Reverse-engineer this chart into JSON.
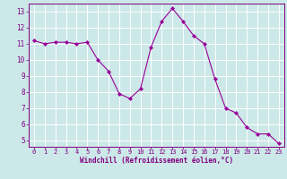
{
  "x": [
    0,
    1,
    2,
    3,
    4,
    5,
    6,
    7,
    8,
    9,
    10,
    11,
    12,
    13,
    14,
    15,
    16,
    17,
    18,
    19,
    20,
    21,
    22,
    23
  ],
  "y": [
    11.2,
    11.0,
    11.1,
    11.1,
    11.0,
    11.1,
    10.0,
    9.3,
    7.9,
    7.6,
    8.2,
    10.8,
    12.4,
    13.2,
    12.4,
    11.5,
    11.0,
    8.8,
    7.0,
    6.7,
    5.8,
    5.4,
    5.4,
    4.8
  ],
  "line_color": "#990099",
  "marker": "D",
  "marker_size": 2,
  "bg_color": "#cce8e8",
  "grid_color": "#ffffff",
  "xlabel": "Windchill (Refroidissement éolien,°C)",
  "xlabel_color": "#800080",
  "tick_color": "#800080",
  "ylim": [
    4.6,
    13.5
  ],
  "xlim": [
    -0.5,
    23.5
  ],
  "yticks": [
    5,
    6,
    7,
    8,
    9,
    10,
    11,
    12,
    13
  ],
  "xticks": [
    0,
    1,
    2,
    3,
    4,
    5,
    6,
    7,
    8,
    9,
    10,
    11,
    12,
    13,
    14,
    15,
    16,
    17,
    18,
    19,
    20,
    21,
    22,
    23
  ],
  "xtick_labels": [
    "0",
    "1",
    "2",
    "3",
    "4",
    "5",
    "6",
    "7",
    "8",
    "9",
    "10",
    "11",
    "12",
    "13",
    "14",
    "15",
    "16",
    "17",
    "18",
    "19",
    "20",
    "21",
    "22",
    "23"
  ]
}
